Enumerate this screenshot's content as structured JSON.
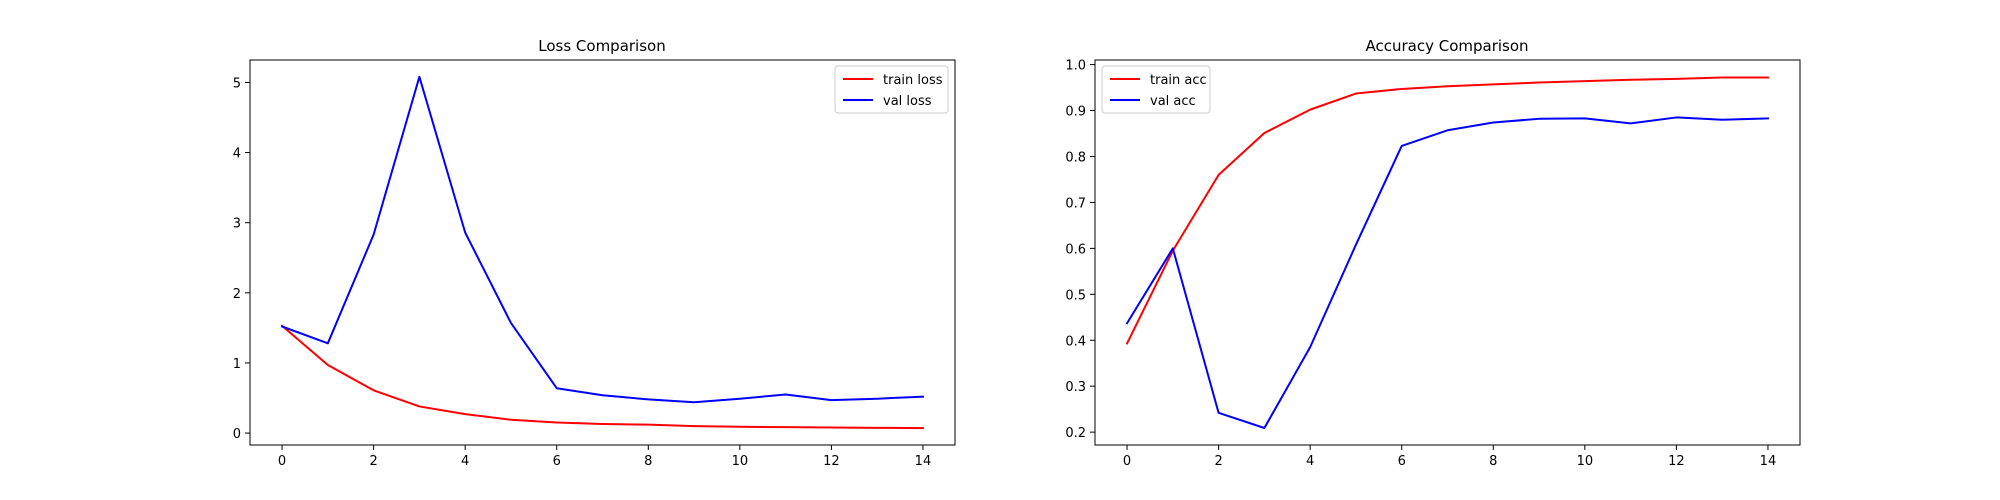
{
  "colors": {
    "red": "#ff0000",
    "blue": "#0000ff",
    "axis": "#000000",
    "background": "#ffffff"
  },
  "chart_data": [
    {
      "type": "line",
      "title": "Loss Comparison",
      "xlabel": "",
      "ylabel": "",
      "x": [
        0,
        1,
        2,
        3,
        4,
        5,
        6,
        7,
        8,
        9,
        10,
        11,
        12,
        13,
        14
      ],
      "xlim": [
        -0.7,
        14.7
      ],
      "ylim": [
        -0.17,
        5.32
      ],
      "xticks": [
        0,
        2,
        4,
        6,
        8,
        10,
        12,
        14
      ],
      "yticks": [
        0,
        1,
        2,
        3,
        4,
        5
      ],
      "legend_position": "upper right",
      "grid": false,
      "series": [
        {
          "name": "train loss",
          "color": "#ff0000",
          "values": [
            1.53,
            0.97,
            0.61,
            0.38,
            0.27,
            0.19,
            0.15,
            0.13,
            0.12,
            0.1,
            0.09,
            0.085,
            0.08,
            0.075,
            0.07
          ]
        },
        {
          "name": "val loss",
          "color": "#0000ff",
          "values": [
            1.52,
            1.28,
            2.83,
            5.08,
            2.86,
            1.57,
            0.64,
            0.54,
            0.48,
            0.44,
            0.49,
            0.55,
            0.47,
            0.49,
            0.52
          ]
        }
      ]
    },
    {
      "type": "line",
      "title": "Accuracy Comparison",
      "xlabel": "",
      "ylabel": "",
      "x": [
        0,
        1,
        2,
        3,
        4,
        5,
        6,
        7,
        8,
        9,
        10,
        11,
        12,
        13,
        14
      ],
      "xlim": [
        -0.7,
        14.7
      ],
      "ylim": [
        0.172,
        1.01
      ],
      "xticks": [
        0,
        2,
        4,
        6,
        8,
        10,
        12,
        14
      ],
      "yticks": [
        0.2,
        0.3,
        0.4,
        0.5,
        0.6,
        0.7,
        0.8,
        0.9,
        1.0
      ],
      "ytick_labels": [
        "0.2",
        "0.3",
        "0.4",
        "0.5",
        "0.6",
        "0.7",
        "0.8",
        "0.9",
        "1.0"
      ],
      "legend_position": "upper left",
      "grid": false,
      "series": [
        {
          "name": "train acc",
          "color": "#ff0000",
          "values": [
            0.393,
            0.595,
            0.76,
            0.851,
            0.902,
            0.937,
            0.947,
            0.953,
            0.957,
            0.961,
            0.964,
            0.967,
            0.969,
            0.972,
            0.972
          ]
        },
        {
          "name": "val acc",
          "color": "#0000ff",
          "values": [
            0.437,
            0.6,
            0.242,
            0.209,
            0.385,
            0.608,
            0.823,
            0.857,
            0.874,
            0.882,
            0.883,
            0.872,
            0.885,
            0.88,
            0.883
          ]
        }
      ]
    }
  ]
}
